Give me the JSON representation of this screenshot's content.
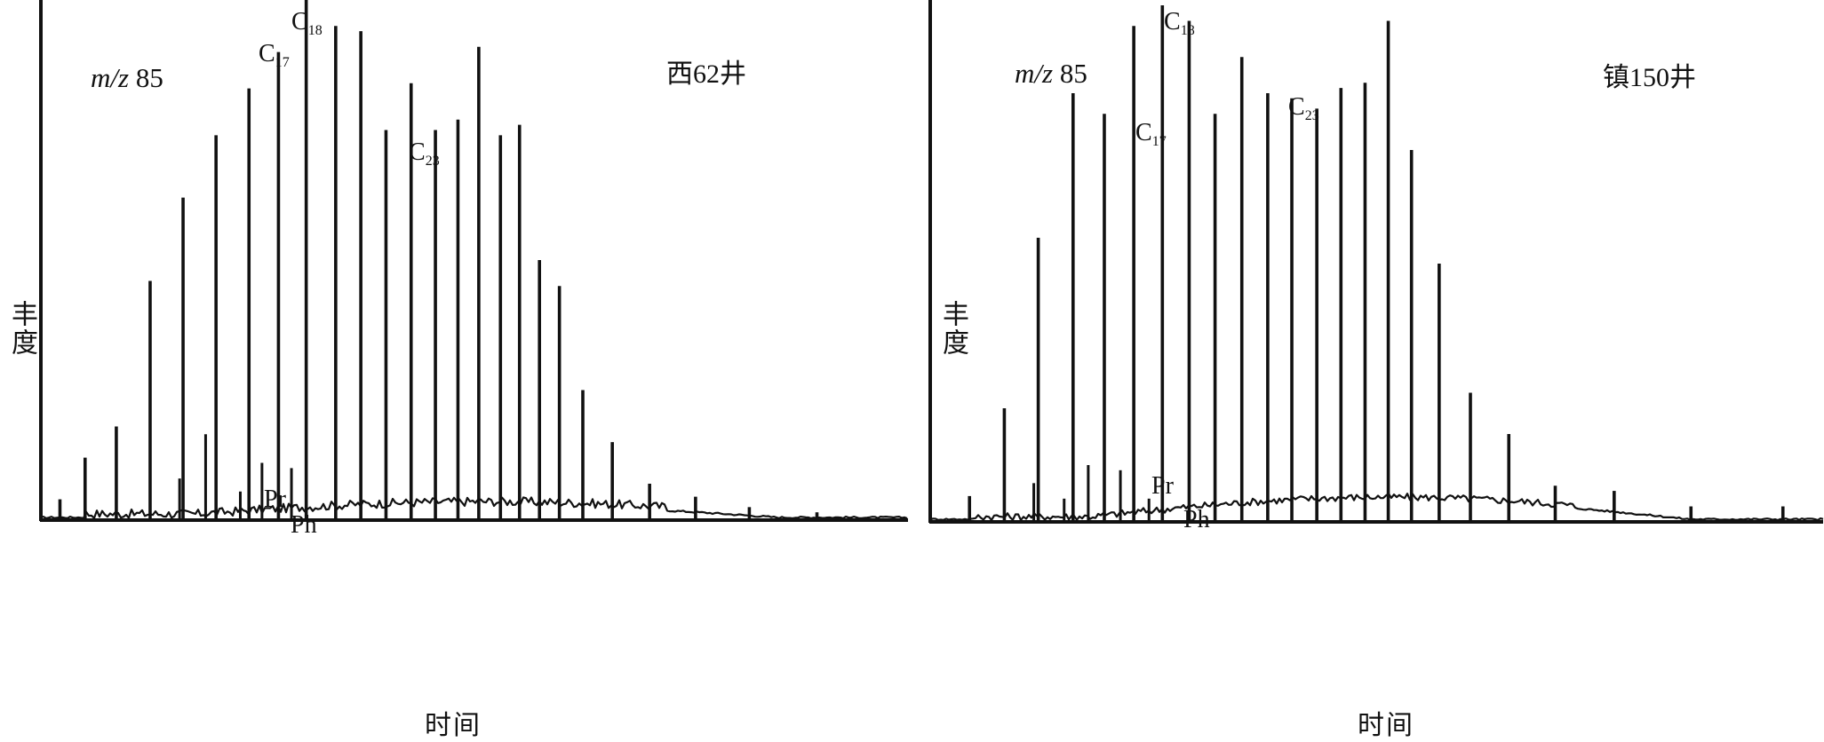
{
  "panels": [
    {
      "well": "西62井",
      "mz_italic": "m/z",
      "mz_value": "85",
      "ylabel": "丰度",
      "xlabel": "时间",
      "labels": [
        {
          "id": "c17",
          "main": "C",
          "sub": "17"
        },
        {
          "id": "c18",
          "main": "C",
          "sub": "18"
        },
        {
          "id": "c23",
          "main": "C",
          "sub": "23"
        },
        {
          "id": "pr",
          "main": "Pr",
          "sub": ""
        },
        {
          "id": "ph",
          "main": "Ph",
          "sub": ""
        }
      ]
    },
    {
      "well": "镇150井",
      "mz_italic": "m/z",
      "mz_value": "85",
      "ylabel": "丰度",
      "xlabel": "时间",
      "labels": [
        {
          "id": "c17",
          "main": "C",
          "sub": "17"
        },
        {
          "id": "c18",
          "main": "C",
          "sub": "18"
        },
        {
          "id": "c23",
          "main": "C",
          "sub": "23"
        },
        {
          "id": "pr",
          "main": "Pr",
          "sub": ""
        },
        {
          "id": "ph",
          "main": "Ph",
          "sub": ""
        }
      ]
    }
  ],
  "chart_data": [
    {
      "type": "line",
      "title": "西62井",
      "annotation": "m/z 85",
      "xlabel": "时间",
      "ylabel": "丰度",
      "x_unit": "relative retention time (0-1)",
      "y_unit": "relative abundance (0-1)",
      "grid": false,
      "ylim": [
        0,
        1
      ],
      "xlim": [
        0,
        1
      ],
      "peaks": [
        {
          "x": 0.022,
          "y": 0.04
        },
        {
          "x": 0.051,
          "y": 0.12
        },
        {
          "x": 0.087,
          "y": 0.18
        },
        {
          "x": 0.126,
          "y": 0.46
        },
        {
          "x": 0.164,
          "y": 0.62
        },
        {
          "x": 0.202,
          "y": 0.74
        },
        {
          "x": 0.24,
          "y": 0.83
        },
        {
          "x": 0.274,
          "y": 0.9,
          "label": "C17"
        },
        {
          "x": 0.306,
          "y": 1.0,
          "label": "C18"
        },
        {
          "x": 0.34,
          "y": 0.95
        },
        {
          "x": 0.369,
          "y": 0.94
        },
        {
          "x": 0.398,
          "y": 0.75
        },
        {
          "x": 0.427,
          "y": 0.84
        },
        {
          "x": 0.455,
          "y": 0.75,
          "label": "C23"
        },
        {
          "x": 0.481,
          "y": 0.77
        },
        {
          "x": 0.505,
          "y": 0.91
        },
        {
          "x": 0.53,
          "y": 0.74
        },
        {
          "x": 0.552,
          "y": 0.76
        },
        {
          "x": 0.575,
          "y": 0.5
        },
        {
          "x": 0.598,
          "y": 0.45
        },
        {
          "x": 0.625,
          "y": 0.25
        },
        {
          "x": 0.659,
          "y": 0.15
        },
        {
          "x": 0.702,
          "y": 0.07
        },
        {
          "x": 0.755,
          "y": 0.045
        },
        {
          "x": 0.817,
          "y": 0.025
        },
        {
          "x": 0.895,
          "y": 0.015
        }
      ],
      "minor_peaks": [
        {
          "x": 0.19,
          "y": 0.165
        },
        {
          "x": 0.255,
          "y": 0.11,
          "label": "Pr"
        },
        {
          "x": 0.289,
          "y": 0.1,
          "label": "Ph"
        },
        {
          "x": 0.16,
          "y": 0.08
        },
        {
          "x": 0.23,
          "y": 0.055
        }
      ]
    },
    {
      "type": "line",
      "title": "镇150井",
      "annotation": "m/z 85",
      "xlabel": "时间",
      "ylabel": "丰度",
      "x_unit": "relative retention time (0-1)",
      "y_unit": "relative abundance (0-1)",
      "grid": false,
      "ylim": [
        0,
        1
      ],
      "xlim": [
        0,
        1
      ],
      "peaks": [
        {
          "x": 0.044,
          "y": 0.05
        },
        {
          "x": 0.083,
          "y": 0.22
        },
        {
          "x": 0.121,
          "y": 0.55
        },
        {
          "x": 0.16,
          "y": 0.83
        },
        {
          "x": 0.195,
          "y": 0.79,
          "label": "C17"
        },
        {
          "x": 0.228,
          "y": 0.96,
          "label": "C18"
        },
        {
          "x": 0.26,
          "y": 1.0
        },
        {
          "x": 0.29,
          "y": 0.97
        },
        {
          "x": 0.319,
          "y": 0.79
        },
        {
          "x": 0.349,
          "y": 0.9
        },
        {
          "x": 0.378,
          "y": 0.83,
          "label": "C23"
        },
        {
          "x": 0.405,
          "y": 0.82
        },
        {
          "x": 0.433,
          "y": 0.8
        },
        {
          "x": 0.46,
          "y": 0.84
        },
        {
          "x": 0.487,
          "y": 0.85
        },
        {
          "x": 0.513,
          "y": 0.97
        },
        {
          "x": 0.539,
          "y": 0.72
        },
        {
          "x": 0.57,
          "y": 0.5
        },
        {
          "x": 0.605,
          "y": 0.25
        },
        {
          "x": 0.648,
          "y": 0.17
        },
        {
          "x": 0.7,
          "y": 0.07
        },
        {
          "x": 0.766,
          "y": 0.06
        },
        {
          "x": 0.852,
          "y": 0.03
        },
        {
          "x": 0.955,
          "y": 0.03
        }
      ],
      "minor_peaks": [
        {
          "x": 0.116,
          "y": 0.075
        },
        {
          "x": 0.177,
          "y": 0.11,
          "label": "Pr"
        },
        {
          "x": 0.213,
          "y": 0.1,
          "label": "Ph"
        },
        {
          "x": 0.15,
          "y": 0.045
        },
        {
          "x": 0.245,
          "y": 0.045
        }
      ]
    }
  ]
}
